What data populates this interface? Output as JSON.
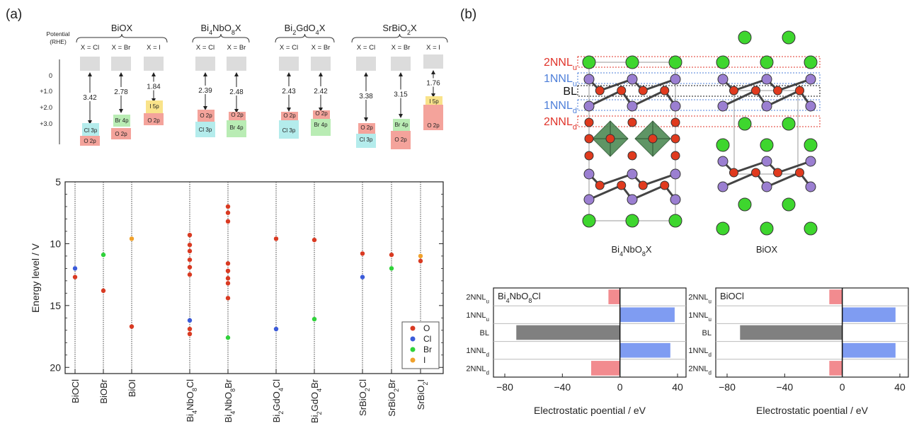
{
  "panel_a_label": "(a)",
  "panel_b_label": "(b)",
  "band_diagram": {
    "potential_label_line1": "Potential",
    "potential_label_line2": "(RHE)",
    "potential_ticks": [
      "0",
      "+1.0",
      "+2.0",
      "+3.0"
    ],
    "groups": [
      {
        "name": "BiOX",
        "name_parts": [
          [
            "BiOX",
            false
          ]
        ]
      },
      {
        "name": "Bi4NbO8X",
        "name_parts": [
          [
            "Bi",
            false
          ],
          [
            "4",
            true
          ],
          [
            "NbO",
            false
          ],
          [
            "8",
            true
          ],
          [
            "X",
            false
          ]
        ]
      },
      {
        "name": "Bi2GdO4X",
        "name_parts": [
          [
            "Bi",
            false
          ],
          [
            "2",
            true
          ],
          [
            "GdO",
            false
          ],
          [
            "4",
            true
          ],
          [
            "X",
            false
          ]
        ]
      },
      {
        "name": "SrBiO2X",
        "name_parts": [
          [
            "SrBiO",
            false
          ],
          [
            "2",
            true
          ],
          [
            "X",
            false
          ]
        ]
      }
    ],
    "columns": [
      {
        "group": 0,
        "label": "X = Cl",
        "gap": "3.42",
        "vb": [
          {
            "text": "Cl 3p",
            "color": "#b4ecec"
          },
          {
            "text": "O 2p",
            "color": "#f4a39b"
          }
        ]
      },
      {
        "group": 0,
        "label": "X = Br",
        "gap": "2.78",
        "vb": [
          {
            "text": "Br 4p",
            "color": "#b9ecb4"
          },
          {
            "text": "O 2p",
            "color": "#f4a39b"
          }
        ]
      },
      {
        "group": 0,
        "label": "X = I",
        "gap": "1.84",
        "vb": [
          {
            "text": "I 5p",
            "color": "#f9e38a"
          },
          {
            "text": "O 2p",
            "color": "#f4a39b"
          }
        ]
      },
      {
        "group": 1,
        "label": "X = Cl",
        "gap": "2.39",
        "vb": [
          {
            "text": "O 2p",
            "color": "#f4a39b"
          },
          {
            "text": "Cl 3p",
            "color": "#b4ecec"
          }
        ]
      },
      {
        "group": 1,
        "label": "X = Br",
        "gap": "2.48",
        "vb": [
          {
            "text": "O 2p",
            "color": "#f4a39b"
          },
          {
            "text": "Br 4p",
            "color": "#b9ecb4"
          }
        ]
      },
      {
        "group": 2,
        "label": "X = Cl",
        "gap": "2.43",
        "vb": [
          {
            "text": "O 2p",
            "color": "#f4a39b"
          },
          {
            "text": "Cl 3p",
            "color": "#b4ecec"
          }
        ]
      },
      {
        "group": 2,
        "label": "X = Br",
        "gap": "2.42",
        "vb": [
          {
            "text": "O 2p",
            "color": "#f4a39b"
          },
          {
            "text": "Br 4p",
            "color": "#b9ecb4"
          }
        ]
      },
      {
        "group": 3,
        "label": "X = Cl",
        "gap": "3.38",
        "vb": [
          {
            "text": "O 2p",
            "color": "#f4a39b"
          },
          {
            "text": "Cl 3p",
            "color": "#b4ecec"
          }
        ]
      },
      {
        "group": 3,
        "label": "X = Br",
        "gap": "3.15",
        "vb": [
          {
            "text": "Br 4p",
            "color": "#b9ecb4"
          },
          {
            "text": "O 2p",
            "color": "#f4a39b"
          }
        ]
      },
      {
        "group": 3,
        "label": "X = I",
        "gap": "1.76",
        "vb": [
          {
            "text": "I 5p",
            "color": "#f9e38a"
          },
          {
            "text": "O 2p",
            "color": "#f4a39b"
          }
        ]
      }
    ]
  },
  "energy_chart": {
    "ylabel": "Energy level / V",
    "ylim": [
      5,
      20.5
    ],
    "yticks": [
      5,
      10,
      15,
      20
    ],
    "legend": [
      {
        "name": "O",
        "color": "#d93a22"
      },
      {
        "name": "Cl",
        "color": "#3b5bd9"
      },
      {
        "name": "Br",
        "color": "#2fd23a"
      },
      {
        "name": "I",
        "color": "#f0a12c"
      }
    ],
    "compounds": [
      {
        "name": "BiOCl",
        "label_parts": [
          [
            "BiOCl",
            false
          ]
        ],
        "points": [
          [
            "Cl",
            12.0
          ],
          [
            "O",
            12.7
          ]
        ]
      },
      {
        "name": "BiOBr",
        "label_parts": [
          [
            "BiOBr",
            false
          ]
        ],
        "points": [
          [
            "Br",
            10.9
          ],
          [
            "O",
            13.8
          ]
        ]
      },
      {
        "name": "BiOI",
        "label_parts": [
          [
            "BiOI",
            false
          ]
        ],
        "points": [
          [
            "I",
            9.6
          ],
          [
            "O",
            16.7
          ]
        ]
      },
      {
        "name": "Bi4NbO8Cl",
        "label_parts": [
          [
            "Bi",
            false
          ],
          [
            "4",
            true
          ],
          [
            "NbO",
            false
          ],
          [
            "8",
            true
          ],
          [
            "Cl",
            false
          ]
        ],
        "points": [
          [
            "O",
            9.3
          ],
          [
            "O",
            10.1
          ],
          [
            "O",
            10.6
          ],
          [
            "O",
            11.3
          ],
          [
            "O",
            11.9
          ],
          [
            "O",
            12.5
          ],
          [
            "Cl",
            16.2
          ],
          [
            "O",
            16.9
          ],
          [
            "O",
            17.3
          ]
        ]
      },
      {
        "name": "Bi4NbO8Br",
        "label_parts": [
          [
            "Bi",
            false
          ],
          [
            "4",
            true
          ],
          [
            "NbO",
            false
          ],
          [
            "8",
            true
          ],
          [
            "Br",
            false
          ]
        ],
        "points": [
          [
            "O",
            7.0
          ],
          [
            "O",
            7.5
          ],
          [
            "O",
            8.2
          ],
          [
            "O",
            11.6
          ],
          [
            "O",
            12.2
          ],
          [
            "O",
            12.8
          ],
          [
            "O",
            13.2
          ],
          [
            "O",
            14.4
          ],
          [
            "Br",
            17.6
          ]
        ]
      },
      {
        "name": "Bi2GdO4Cl",
        "label_parts": [
          [
            "Bi",
            false
          ],
          [
            "2",
            true
          ],
          [
            "GdO",
            false
          ],
          [
            "4",
            true
          ],
          [
            "Cl",
            false
          ]
        ],
        "points": [
          [
            "O",
            9.6
          ],
          [
            "Cl",
            16.9
          ]
        ]
      },
      {
        "name": "Bi2GdO4Br",
        "label_parts": [
          [
            "Bi",
            false
          ],
          [
            "2",
            true
          ],
          [
            "GdO",
            false
          ],
          [
            "4",
            true
          ],
          [
            "Br",
            false
          ]
        ],
        "points": [
          [
            "O",
            9.7
          ],
          [
            "Br",
            16.1
          ]
        ]
      },
      {
        "name": "SrBiO2Cl",
        "label_parts": [
          [
            "SrBiO",
            false
          ],
          [
            "2",
            true
          ],
          [
            "Cl",
            false
          ]
        ],
        "points": [
          [
            "O",
            10.8
          ],
          [
            "Cl",
            12.7
          ]
        ]
      },
      {
        "name": "SrBiO2Br",
        "label_parts": [
          [
            "SrBiO",
            false
          ],
          [
            "2",
            true
          ],
          [
            "Br",
            false
          ]
        ],
        "points": [
          [
            "O",
            10.9
          ],
          [
            "Br",
            12.0
          ]
        ]
      },
      {
        "name": "SrBiO2I",
        "label_parts": [
          [
            "SrBiO",
            false
          ],
          [
            "2",
            true
          ],
          [
            "I",
            false
          ]
        ],
        "points": [
          [
            "I",
            11.0
          ],
          [
            "O",
            11.4
          ]
        ]
      }
    ]
  },
  "structure": {
    "layer_labels": [
      {
        "base": "2NNL",
        "sub": "u",
        "color": "#e0342a"
      },
      {
        "base": "1NNL",
        "sub": "u",
        "color": "#4e7fd9"
      },
      {
        "base": "BL",
        "sub": "",
        "color": "#111111"
      },
      {
        "base": "1NNL",
        "sub": "d",
        "color": "#4e7fd9"
      },
      {
        "base": "2NNL",
        "sub": "d",
        "color": "#e0342a"
      }
    ],
    "left_caption_parts": [
      [
        "Bi",
        false
      ],
      [
        "4",
        true
      ],
      [
        "NbO",
        false
      ],
      [
        "8",
        true
      ],
      [
        "X",
        false
      ]
    ],
    "right_caption": "BiOX",
    "atom_colors": {
      "halogen": "#3ed62e",
      "oxygen": "#e03a1e",
      "bismuth": "#9b7fd1",
      "octahedron": "#4e8a55"
    }
  },
  "potential_charts": [
    {
      "title_parts": [
        [
          "Bi",
          false
        ],
        [
          "4",
          true
        ],
        [
          "NbO",
          false
        ],
        [
          "8",
          true
        ],
        [
          "Cl",
          false
        ]
      ],
      "xlabel": "Electrostatic poential / eV",
      "xlim": [
        -80,
        40
      ],
      "xticks": [
        -80,
        -40,
        0,
        40
      ],
      "bars": [
        {
          "layer": "2NNLu",
          "base": "2NNL",
          "sub": "u",
          "value": -8,
          "color": "#f28b8f"
        },
        {
          "layer": "1NNLu",
          "base": "1NNL",
          "sub": "u",
          "value": 38,
          "color": "#7f9cf2"
        },
        {
          "layer": "BL",
          "base": "BL",
          "sub": "",
          "value": -72,
          "color": "#808080"
        },
        {
          "layer": "1NNLd",
          "base": "1NNL",
          "sub": "d",
          "value": 35,
          "color": "#7f9cf2"
        },
        {
          "layer": "2NNLd",
          "base": "2NNL",
          "sub": "d",
          "value": -20,
          "color": "#f28b8f"
        }
      ]
    },
    {
      "title_parts": [
        [
          "BiOCl",
          false
        ]
      ],
      "xlabel": "Electrostatic poential / eV",
      "xlim": [
        -80,
        40
      ],
      "xticks": [
        -80,
        -40,
        0,
        40
      ],
      "bars": [
        {
          "layer": "2NNLu",
          "base": "2NNL",
          "sub": "u",
          "value": -9,
          "color": "#f28b8f"
        },
        {
          "layer": "1NNLu",
          "base": "1NNL",
          "sub": "u",
          "value": 37,
          "color": "#7f9cf2"
        },
        {
          "layer": "BL",
          "base": "BL",
          "sub": "",
          "value": -71,
          "color": "#808080"
        },
        {
          "layer": "1NNLd",
          "base": "1NNL",
          "sub": "d",
          "value": 37,
          "color": "#7f9cf2"
        },
        {
          "layer": "2NNLd",
          "base": "2NNL",
          "sub": "d",
          "value": -9,
          "color": "#f28b8f"
        }
      ]
    }
  ],
  "chart_data": [
    {
      "type": "scatter",
      "ylabel": "Energy level / V",
      "ylim": [
        5,
        20.5
      ],
      "y_inverted": true,
      "categories": [
        "BiOCl",
        "BiOBr",
        "BiOI",
        "Bi4NbO8Cl",
        "Bi4NbO8Br",
        "Bi2GdO4Cl",
        "Bi2GdO4Br",
        "SrBiO2Cl",
        "SrBiO2Br",
        "SrBiO2I"
      ],
      "series": [
        {
          "name": "O",
          "points": [
            [
              "BiOCl",
              12.7
            ],
            [
              "BiOBr",
              13.8
            ],
            [
              "BiOI",
              16.7
            ],
            [
              "Bi4NbO8Cl",
              9.3
            ],
            [
              "Bi4NbO8Cl",
              10.1
            ],
            [
              "Bi4NbO8Cl",
              10.6
            ],
            [
              "Bi4NbO8Cl",
              11.3
            ],
            [
              "Bi4NbO8Cl",
              11.9
            ],
            [
              "Bi4NbO8Cl",
              12.5
            ],
            [
              "Bi4NbO8Cl",
              16.9
            ],
            [
              "Bi4NbO8Cl",
              17.3
            ],
            [
              "Bi4NbO8Br",
              7.0
            ],
            [
              "Bi4NbO8Br",
              7.5
            ],
            [
              "Bi4NbO8Br",
              8.2
            ],
            [
              "Bi4NbO8Br",
              11.6
            ],
            [
              "Bi4NbO8Br",
              12.2
            ],
            [
              "Bi4NbO8Br",
              12.8
            ],
            [
              "Bi4NbO8Br",
              13.2
            ],
            [
              "Bi4NbO8Br",
              14.4
            ],
            [
              "Bi2GdO4Cl",
              9.6
            ],
            [
              "Bi2GdO4Br",
              9.7
            ],
            [
              "SrBiO2Cl",
              10.8
            ],
            [
              "SrBiO2Br",
              10.9
            ],
            [
              "SrBiO2I",
              11.4
            ]
          ]
        },
        {
          "name": "Cl",
          "points": [
            [
              "BiOCl",
              12.0
            ],
            [
              "Bi4NbO8Cl",
              16.2
            ],
            [
              "Bi2GdO4Cl",
              16.9
            ],
            [
              "SrBiO2Cl",
              12.7
            ]
          ]
        },
        {
          "name": "Br",
          "points": [
            [
              "BiOBr",
              10.9
            ],
            [
              "Bi4NbO8Br",
              17.6
            ],
            [
              "Bi2GdO4Br",
              16.1
            ],
            [
              "SrBiO2Br",
              12.0
            ]
          ]
        },
        {
          "name": "I",
          "points": [
            [
              "BiOI",
              9.6
            ],
            [
              "SrBiO2I",
              11.0
            ]
          ]
        }
      ],
      "legend": "bottom-right"
    },
    {
      "type": "bar",
      "title": "Bi4NbO8Cl",
      "xlabel": "Electrostatic poential / eV",
      "categories": [
        "2NNLu",
        "1NNLu",
        "BL",
        "1NNLd",
        "2NNLd"
      ],
      "values": [
        -8,
        38,
        -72,
        35,
        -20
      ],
      "xlim": [
        -80,
        40
      ],
      "orientation": "horizontal"
    },
    {
      "type": "bar",
      "title": "BiOCl",
      "xlabel": "Electrostatic poential / eV",
      "categories": [
        "2NNLu",
        "1NNLu",
        "BL",
        "1NNLd",
        "2NNLd"
      ],
      "values": [
        -9,
        37,
        -71,
        37,
        -9
      ],
      "xlim": [
        -80,
        40
      ],
      "orientation": "horizontal"
    }
  ]
}
